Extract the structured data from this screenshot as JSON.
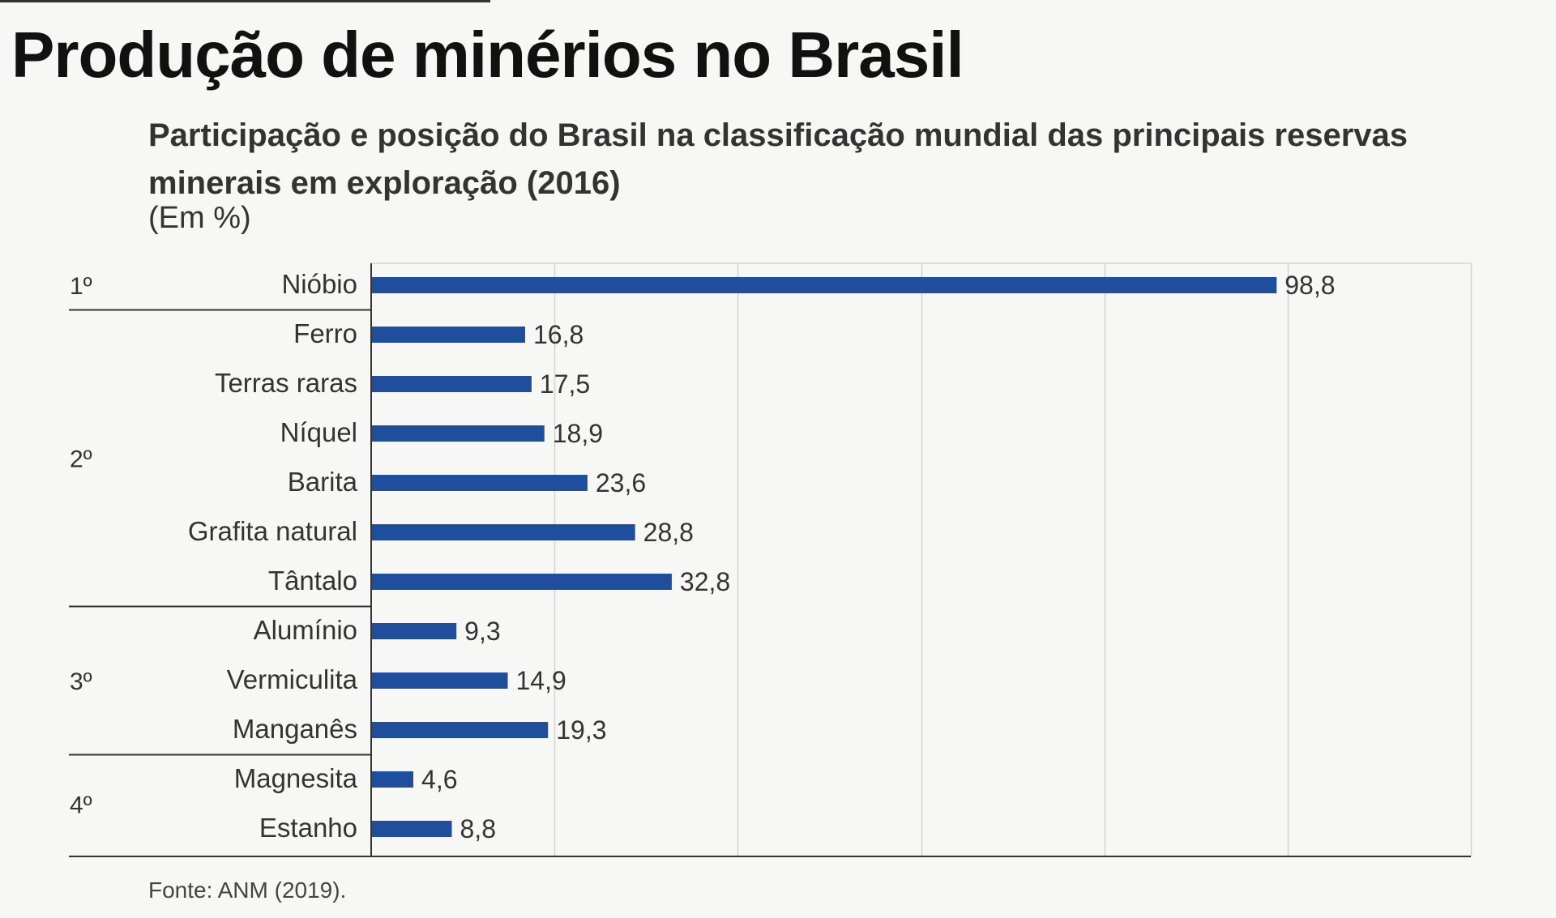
{
  "header": {
    "title": "Produção de minérios no Brasil",
    "subtitle": "Participação e posição do Brasil na classificação mundial das principais reservas minerais em exploração (2016)",
    "unit": "(Em %)"
  },
  "footer": {
    "source": "Fonte: ANM (2019)."
  },
  "colors": {
    "bar": "#1f4e9c",
    "grid": "#d4d4d4",
    "axis": "#333333"
  },
  "chart_data": {
    "type": "bar",
    "orientation": "horizontal",
    "categories": [
      "Nióbio",
      "Ferro",
      "Terras raras",
      "Níquel",
      "Barita",
      "Grafita natural",
      "Tântalo",
      "Alumínio",
      "Vermiculita",
      "Manganês",
      "Magnesita",
      "Estanho"
    ],
    "values": [
      98.8,
      16.8,
      17.5,
      18.9,
      23.6,
      28.8,
      32.8,
      9.3,
      14.9,
      19.3,
      4.6,
      8.8
    ],
    "value_labels": [
      "98,8",
      "16,8",
      "17,5",
      "18,9",
      "23,6",
      "28,8",
      "32,8",
      "9,3",
      "14,9",
      "19,3",
      "4,6",
      "8,8"
    ],
    "groups": [
      {
        "label": "1º",
        "start": 0,
        "end": 0
      },
      {
        "label": "2º",
        "start": 1,
        "end": 6
      },
      {
        "label": "3º",
        "start": 7,
        "end": 9
      },
      {
        "label": "4º",
        "start": 10,
        "end": 11
      }
    ],
    "xlim": [
      0,
      120
    ],
    "grid": true,
    "legend": "none"
  }
}
